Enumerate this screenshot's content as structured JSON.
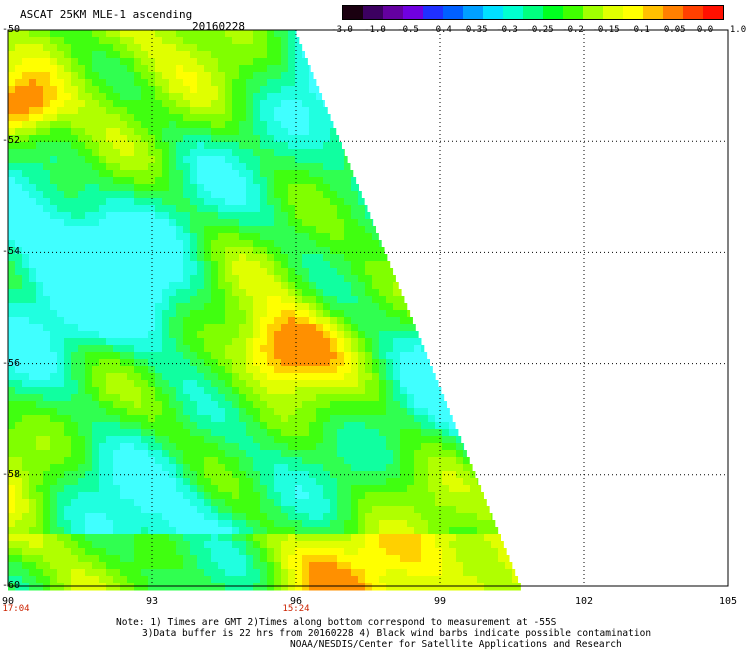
{
  "header": {
    "title": "ASCAT 25KM MLE-1 ascending",
    "date": "20160228"
  },
  "colorbar": {
    "labels": [
      "-3.0",
      "-1.0",
      "-0.5",
      "-0.4",
      "-0.35",
      "-0.3",
      "-0.25",
      "-0.2",
      "-0.15",
      "-0.1",
      "-0.05",
      "0.0",
      "1.0"
    ],
    "colors": [
      "#1a0010",
      "#3c0060",
      "#6400a0",
      "#7000e0",
      "#2030ff",
      "#0060ff",
      "#00a0ff",
      "#00e0ff",
      "#00ffd0",
      "#00ff80",
      "#00ff20",
      "#40ff00",
      "#a0ff00",
      "#e0ff00",
      "#ffff00",
      "#ffc000",
      "#ff8000",
      "#ff4000",
      "#ff1000"
    ]
  },
  "map": {
    "lon_range": [
      90,
      105
    ],
    "lat_range": [
      -60,
      -50
    ],
    "lon_ticks": [
      "90",
      "93",
      "96",
      "99",
      "102",
      "105"
    ],
    "lat_ticks": [
      "-50",
      "-52",
      "-54",
      "-56",
      "-58",
      "-60"
    ],
    "time_labels": [
      {
        "lon": 90,
        "text": "17:04"
      },
      {
        "lon": 96,
        "text": "15:24"
      }
    ]
  },
  "notes": {
    "line1": "Note: 1) Times are GMT 2)Times along bottom correspond to measurement at -55S",
    "line2": "3)Data buffer is 22 hrs from 20160228 4) Black wind barbs indicate possible contamination",
    "line3": "NOAA/NESDIS/Center for Satellite Applications and Research"
  }
}
